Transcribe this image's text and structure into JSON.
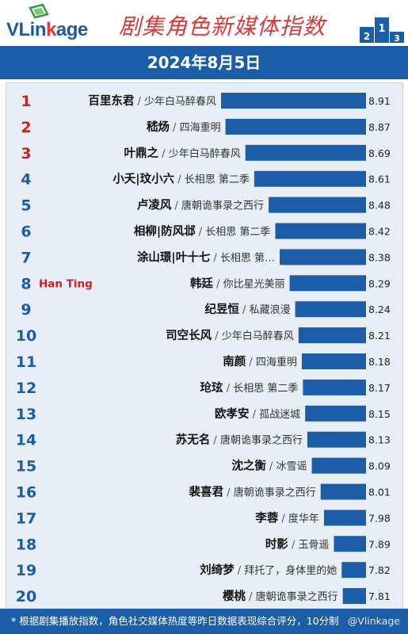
{
  "header": {
    "logo_text_a": "VLin",
    "logo_text_b": "k",
    "logo_text_c": "age",
    "title": "剧集角色新媒体指数",
    "podium_icon": "podium-icon"
  },
  "date": "2024年8月5日",
  "footer": {
    "note": "* 根据剧集播放指数，角色社交媒体热度等昨日数据表现综合评分，10分制",
    "watermark": "@Vlinkage"
  },
  "colors": {
    "bar": "#1c5da8",
    "rank_top3": "#cc2222",
    "rank_other": "#1c5da8",
    "annotation": "#cc2222"
  },
  "chart_data": {
    "type": "bar",
    "orientation": "horizontal",
    "annotation": {
      "rank": 8,
      "text": "Han Ting"
    },
    "items": [
      {
        "rank": "1",
        "name": "百里东君",
        "drama": "少年白马醉春风",
        "value": 8.91
      },
      {
        "rank": "2",
        "name": "嵇炀",
        "drama": "四海重明",
        "value": 8.87
      },
      {
        "rank": "3",
        "name": "叶鼎之",
        "drama": "少年白马醉春风",
        "value": 8.69
      },
      {
        "rank": "4",
        "name": "小夭|玟小六",
        "drama": "长相思 第二季",
        "value": 8.61
      },
      {
        "rank": "5",
        "name": "卢凌风",
        "drama": "唐朝诡事录之西行",
        "value": 8.48
      },
      {
        "rank": "6",
        "name": "相柳|防风邶",
        "drama": "长相思 第二季",
        "value": 8.42
      },
      {
        "rank": "7",
        "name": "涂山璟|叶十七",
        "drama": "长相思 第…",
        "value": 8.38
      },
      {
        "rank": "8",
        "name": "韩廷",
        "drama": "你比星光美丽",
        "value": 8.29
      },
      {
        "rank": "9",
        "name": "纪昱恒",
        "drama": "私藏浪漫",
        "value": 8.24
      },
      {
        "rank": "10",
        "name": "司空长风",
        "drama": "少年白马醉春风",
        "value": 8.21
      },
      {
        "rank": "11",
        "name": "南颜",
        "drama": "四海重明",
        "value": 8.18
      },
      {
        "rank": "12",
        "name": "玱玹",
        "drama": "长相思 第二季",
        "value": 8.17
      },
      {
        "rank": "13",
        "name": "欧孝安",
        "drama": "孤战迷城",
        "value": 8.15
      },
      {
        "rank": "14",
        "name": "苏无名",
        "drama": "唐朝诡事录之西行",
        "value": 8.13
      },
      {
        "rank": "15",
        "name": "沈之衡",
        "drama": "冰雪谣",
        "value": 8.09
      },
      {
        "rank": "16",
        "name": "裴喜君",
        "drama": "唐朝诡事录之西行",
        "value": 8.01
      },
      {
        "rank": "17",
        "name": "李蓉",
        "drama": "度华年",
        "value": 7.98
      },
      {
        "rank": "18",
        "name": "时影",
        "drama": "玉骨遥",
        "value": 7.89
      },
      {
        "rank": "19",
        "name": "刘绮梦",
        "drama": "拜托了，身体里的她",
        "value": 7.82
      },
      {
        "rank": "20",
        "name": "樱桃",
        "drama": "唐朝诡事录之西行",
        "value": 7.81
      }
    ]
  }
}
